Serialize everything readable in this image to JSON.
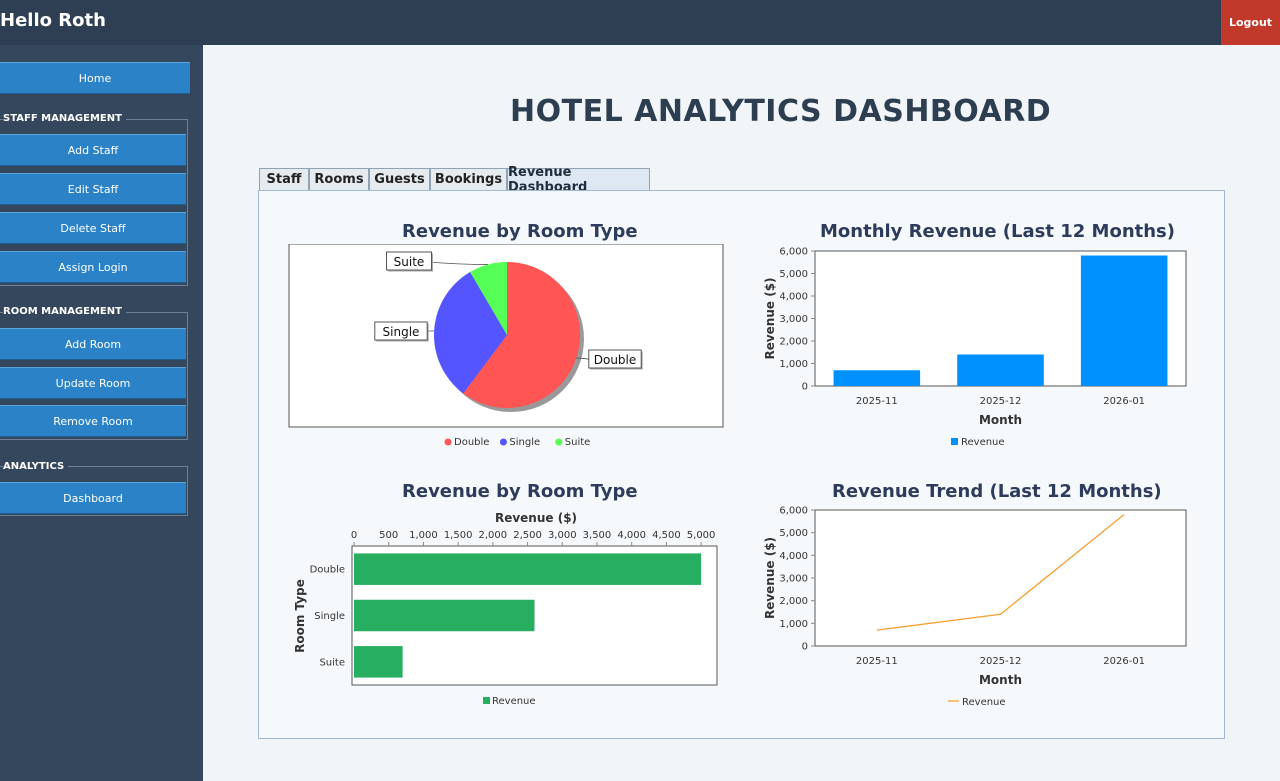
{
  "header": {
    "greeting": "Hello Roth",
    "logout_label": "Logout"
  },
  "sidebar": {
    "home_label": "Home",
    "staff_title": "STAFF MANAGEMENT",
    "staff_items": [
      "Add Staff",
      "Edit Staff",
      "Delete Staff",
      "Assign Login"
    ],
    "room_title": "ROOM MANAGEMENT",
    "room_items": [
      "Add Room",
      "Update Room",
      "Remove Room"
    ],
    "analytics_title": "ANALYTICS",
    "analytics_items": [
      "Dashboard"
    ]
  },
  "main": {
    "title": "HOTEL ANALYTICS DASHBOARD",
    "tabs": [
      "Staff",
      "Rooms",
      "Guests",
      "Bookings",
      "Revenue Dashboard"
    ],
    "active_tab": "Revenue Dashboard"
  },
  "colors": {
    "double": "#ff5555",
    "single": "#5555ff",
    "suite": "#55ff55",
    "bar_blue": "#0091ff",
    "bar_green": "#27ae60",
    "line_orange": "#f5a030"
  },
  "chart_data": [
    {
      "type": "pie",
      "title": "Revenue by Room Type",
      "categories": [
        "Double",
        "Single",
        "Suite"
      ],
      "values": [
        5000,
        2600,
        700
      ],
      "legend": [
        "Double",
        "Single",
        "Suite"
      ],
      "legend_position": "bottom"
    },
    {
      "type": "bar",
      "title": "Monthly Revenue (Last 12 Months)",
      "categories": [
        "2025-11",
        "2025-12",
        "2026-01"
      ],
      "series": [
        {
          "name": "Revenue",
          "values": [
            700,
            1400,
            5800
          ]
        }
      ],
      "xlabel": "Month",
      "ylabel": "Revenue ($)",
      "ylim": [
        0,
        6000
      ],
      "yticks": [
        "0",
        "1,000",
        "2,000",
        "3,000",
        "4,000",
        "5,000",
        "6,000"
      ],
      "legend_position": "bottom"
    },
    {
      "type": "bar",
      "orientation": "horizontal",
      "title": "Revenue by Room Type",
      "categories": [
        "Double",
        "Single",
        "Suite"
      ],
      "series": [
        {
          "name": "Revenue",
          "values": [
            5000,
            2600,
            700
          ]
        }
      ],
      "xlabel": "Revenue ($)",
      "ylabel": "Room Type",
      "xlim": [
        0,
        5200
      ],
      "xticks": [
        "0",
        "500",
        "1,000",
        "1,500",
        "2,000",
        "2,500",
        "3,000",
        "3,500",
        "4,000",
        "4,500",
        "5,000"
      ],
      "legend_position": "bottom"
    },
    {
      "type": "line",
      "title": "Revenue Trend (Last 12 Months)",
      "categories": [
        "2025-11",
        "2025-12",
        "2026-01"
      ],
      "series": [
        {
          "name": "Revenue",
          "values": [
            700,
            1400,
            5800
          ]
        }
      ],
      "xlabel": "Month",
      "ylabel": "Revenue ($)",
      "ylim": [
        0,
        6000
      ],
      "yticks": [
        "0",
        "1,000",
        "2,000",
        "3,000",
        "4,000",
        "5,000",
        "6,000"
      ],
      "legend_position": "bottom"
    }
  ]
}
